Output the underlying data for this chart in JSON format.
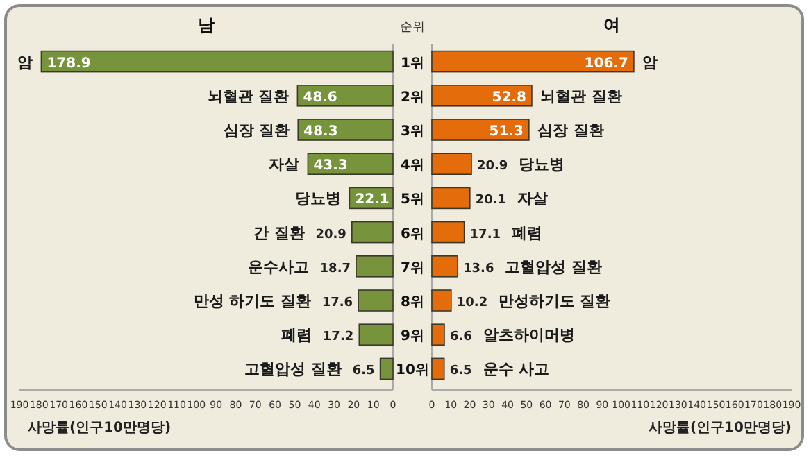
{
  "chart_data": [
    {
      "type": "bar",
      "orientation": "horizontal",
      "title": "남",
      "xlabel": "사망률(인구10만명당)",
      "categories": [
        "암",
        "뇌혈관 질환",
        "심장 질환",
        "자살",
        "당뇨병",
        "간 질환",
        "운수사고",
        "만성 하기도 질환",
        "폐렴",
        "고혈압성 질환"
      ],
      "values": [
        178.9,
        48.6,
        48.3,
        43.3,
        22.1,
        20.9,
        18.7,
        17.6,
        17.2,
        6.5
      ],
      "color": "#77933c",
      "data_labels": true,
      "xlim": [
        190,
        0
      ],
      "xticks": [
        190,
        180,
        170,
        160,
        150,
        140,
        130,
        120,
        110,
        100,
        90,
        80,
        70,
        60,
        50,
        40,
        30,
        20,
        10,
        0
      ],
      "annotations": [
        "순위",
        "1위",
        "2위",
        "3위",
        "4위",
        "5위",
        "6위",
        "7위",
        "8위",
        "9위",
        "10위"
      ]
    },
    {
      "type": "bar",
      "orientation": "horizontal",
      "title": "여",
      "xlabel": "사망률(인구10만명당)",
      "categories": [
        "암",
        "뇌혈관 질환",
        "심장 질환",
        "당뇨병",
        "자살",
        "폐렴",
        "고혈압성 질환",
        "만성하기도 질환",
        "알츠하이머병",
        "운수 사고"
      ],
      "values": [
        106.7,
        52.8,
        51.3,
        20.9,
        20.1,
        17.1,
        13.6,
        10.2,
        6.6,
        6.5
      ],
      "color": "#e46c0a",
      "data_labels": true,
      "xlim": [
        0,
        190
      ],
      "xticks": [
        0,
        10,
        20,
        30,
        40,
        50,
        60,
        70,
        80,
        90,
        100,
        110,
        120,
        130,
        140,
        150,
        160,
        170,
        180,
        190
      ]
    }
  ]
}
